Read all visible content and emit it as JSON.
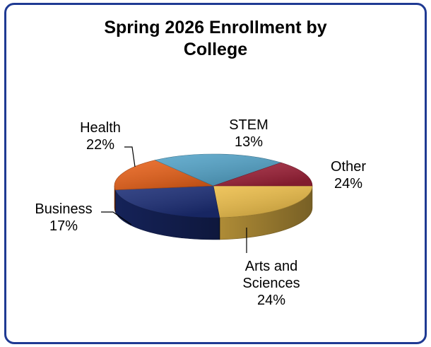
{
  "chart_data": {
    "type": "pie",
    "style": "3d",
    "title": "Spring 2026 Enrollment by\nCollege",
    "start_angle_deg": 0,
    "legend": "none",
    "slices": [
      {
        "label": "Other",
        "display_label": "Other\n24%",
        "value": 24,
        "color": "#ecbd49"
      },
      {
        "label": "Arts and Sciences",
        "display_label": "Arts and\nSciences\n24%",
        "value": 24,
        "color": "#1c2e77"
      },
      {
        "label": "Business",
        "display_label": "Business\n17%",
        "value": 17,
        "color": "#e9621a"
      },
      {
        "label": "Health",
        "display_label": "Health\n22%",
        "value": 22,
        "color": "#54a4c9"
      },
      {
        "label": "STEM",
        "display_label": "STEM\n13%",
        "value": 13,
        "color": "#9e2138"
      }
    ]
  }
}
